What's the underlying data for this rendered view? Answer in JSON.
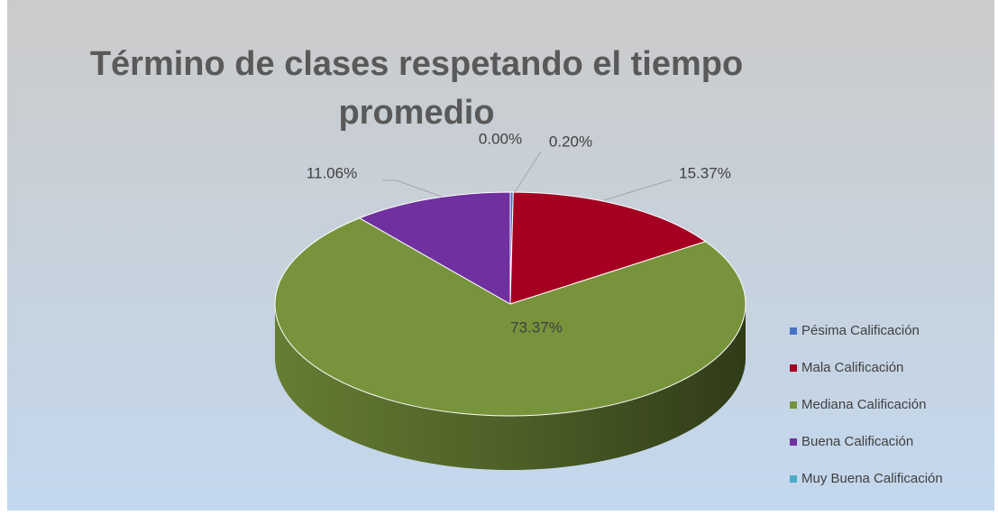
{
  "chart_data": {
    "type": "pie3d",
    "title": "Término de clases respetando el tiempo promedio",
    "categories": [
      "Pésima Calificación",
      "Mala Calificación",
      "Mediana Calificación",
      "Buena Calificación",
      "Muy Buena Calificación"
    ],
    "values": [
      0.2,
      15.37,
      73.37,
      11.06,
      0
    ],
    "value_labels": [
      "0.20%",
      "15.37%",
      "73.37%",
      "11.06%",
      "0.00%"
    ],
    "colors": [
      "#4472c4",
      "#a50021",
      "#77933c",
      "#7030a0",
      "#4bacc6"
    ],
    "legend": "right"
  }
}
